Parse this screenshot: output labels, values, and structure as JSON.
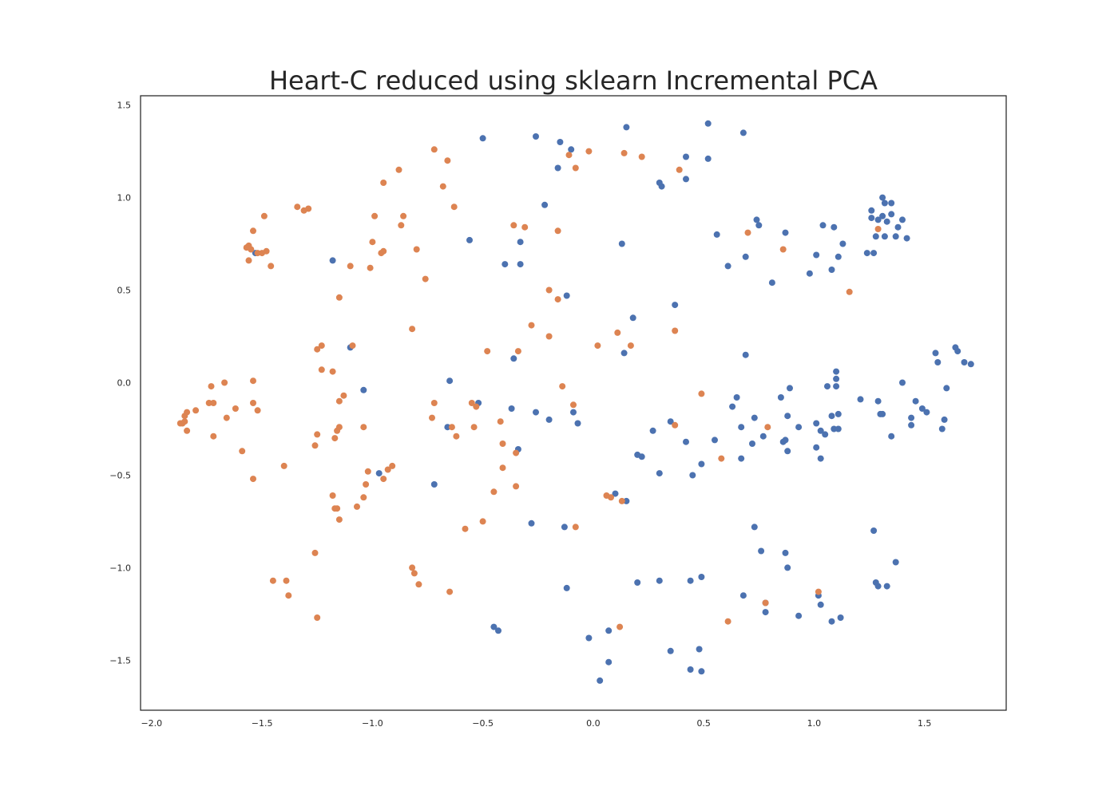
{
  "chart_data": {
    "type": "scatter",
    "title": "Heart-C reduced using sklearn Incremental PCA",
    "xlabel": "",
    "ylabel": "",
    "xlim": [
      -2.05,
      1.87
    ],
    "ylim": [
      -1.77,
      1.55
    ],
    "xticks": [
      -2.0,
      -1.5,
      -1.0,
      -0.5,
      0.0,
      0.5,
      1.0,
      1.5
    ],
    "xtick_labels": [
      "−2.0",
      "−1.5",
      "−1.0",
      "−0.5",
      "0.0",
      "0.5",
      "1.0",
      "1.5"
    ],
    "yticks": [
      1.5,
      1.0,
      0.5,
      0.0,
      -0.5,
      -1.0,
      -1.5
    ],
    "ytick_labels": [
      "1.5",
      "1.0",
      "0.5",
      "0.0",
      "−0.5",
      "−1.0",
      "−1.5"
    ],
    "grid": false,
    "legend": "none",
    "series": [
      {
        "color": "#4c72b0",
        "points": [
          [
            -0.5,
            1.32
          ],
          [
            -0.26,
            1.33
          ],
          [
            -0.15,
            1.3
          ],
          [
            -0.1,
            1.26
          ],
          [
            -0.16,
            1.16
          ],
          [
            0.15,
            1.38
          ],
          [
            0.52,
            1.4
          ],
          [
            0.68,
            1.35
          ],
          [
            0.42,
            1.22
          ],
          [
            0.52,
            1.21
          ],
          [
            0.3,
            1.08
          ],
          [
            0.31,
            1.06
          ],
          [
            0.42,
            1.1
          ],
          [
            -0.22,
            0.96
          ],
          [
            -0.56,
            0.77
          ],
          [
            -0.33,
            0.76
          ],
          [
            -0.4,
            0.64
          ],
          [
            -0.33,
            0.64
          ],
          [
            0.13,
            0.75
          ],
          [
            -1.18,
            0.66
          ],
          [
            -1.53,
            0.7
          ],
          [
            0.56,
            0.8
          ],
          [
            0.74,
            0.88
          ],
          [
            0.75,
            0.85
          ],
          [
            0.87,
            0.81
          ],
          [
            1.04,
            0.85
          ],
          [
            1.09,
            0.84
          ],
          [
            1.13,
            0.75
          ],
          [
            0.61,
            0.63
          ],
          [
            0.69,
            0.68
          ],
          [
            1.01,
            0.69
          ],
          [
            1.11,
            0.68
          ],
          [
            0.98,
            0.59
          ],
          [
            1.08,
            0.61
          ],
          [
            0.81,
            0.54
          ],
          [
            1.24,
            0.7
          ],
          [
            1.27,
            0.7
          ],
          [
            1.26,
            0.93
          ],
          [
            1.31,
            1.0
          ],
          [
            1.32,
            0.97
          ],
          [
            1.35,
            0.97
          ],
          [
            1.26,
            0.89
          ],
          [
            1.29,
            0.88
          ],
          [
            1.31,
            0.9
          ],
          [
            1.33,
            0.87
          ],
          [
            1.35,
            0.91
          ],
          [
            1.38,
            0.84
          ],
          [
            1.4,
            0.88
          ],
          [
            1.28,
            0.79
          ],
          [
            1.32,
            0.79
          ],
          [
            1.37,
            0.79
          ],
          [
            1.42,
            0.78
          ],
          [
            -0.12,
            0.47
          ],
          [
            0.37,
            0.42
          ],
          [
            0.18,
            0.35
          ],
          [
            -1.1,
            0.19
          ],
          [
            -0.36,
            0.13
          ],
          [
            0.14,
            0.16
          ],
          [
            0.69,
            0.15
          ],
          [
            -0.65,
            0.01
          ],
          [
            -1.04,
            -0.04
          ],
          [
            -0.52,
            -0.11
          ],
          [
            -0.37,
            -0.14
          ],
          [
            -0.26,
            -0.16
          ],
          [
            -0.2,
            -0.2
          ],
          [
            -0.09,
            -0.16
          ],
          [
            -0.07,
            -0.22
          ],
          [
            -0.66,
            -0.24
          ],
          [
            -0.34,
            -0.36
          ],
          [
            -0.97,
            -0.49
          ],
          [
            -0.72,
            -0.55
          ],
          [
            0.27,
            -0.26
          ],
          [
            0.35,
            -0.21
          ],
          [
            0.42,
            -0.32
          ],
          [
            0.55,
            -0.31
          ],
          [
            0.2,
            -0.39
          ],
          [
            0.22,
            -0.4
          ],
          [
            0.3,
            -0.49
          ],
          [
            0.49,
            -0.44
          ],
          [
            0.45,
            -0.5
          ],
          [
            0.63,
            -0.13
          ],
          [
            0.65,
            -0.08
          ],
          [
            0.67,
            -0.41
          ],
          [
            0.67,
            -0.24
          ],
          [
            0.72,
            -0.33
          ],
          [
            0.73,
            -0.19
          ],
          [
            0.77,
            -0.29
          ],
          [
            0.85,
            -0.08
          ],
          [
            0.89,
            -0.03
          ],
          [
            0.86,
            -0.32
          ],
          [
            0.87,
            -0.31
          ],
          [
            0.88,
            -0.37
          ],
          [
            0.88,
            -0.18
          ],
          [
            0.93,
            -0.24
          ],
          [
            1.01,
            -0.22
          ],
          [
            1.01,
            -0.35
          ],
          [
            1.03,
            -0.26
          ],
          [
            1.03,
            -0.41
          ],
          [
            1.05,
            -0.28
          ],
          [
            1.06,
            -0.02
          ],
          [
            1.08,
            -0.18
          ],
          [
            1.09,
            -0.25
          ],
          [
            1.1,
            0.06
          ],
          [
            1.1,
            0.02
          ],
          [
            1.1,
            -0.02
          ],
          [
            1.11,
            -0.17
          ],
          [
            1.11,
            -0.25
          ],
          [
            1.21,
            -0.09
          ],
          [
            1.29,
            -0.1
          ],
          [
            1.3,
            -0.17
          ],
          [
            1.31,
            -0.17
          ],
          [
            1.35,
            -0.29
          ],
          [
            1.4,
            0.0
          ],
          [
            1.44,
            -0.19
          ],
          [
            1.44,
            -0.23
          ],
          [
            1.46,
            -0.1
          ],
          [
            1.49,
            -0.14
          ],
          [
            1.51,
            -0.16
          ],
          [
            1.55,
            0.16
          ],
          [
            1.56,
            0.11
          ],
          [
            1.58,
            -0.25
          ],
          [
            1.59,
            -0.2
          ],
          [
            1.6,
            -0.03
          ],
          [
            1.64,
            0.19
          ],
          [
            1.65,
            0.17
          ],
          [
            1.68,
            0.11
          ],
          [
            1.71,
            0.1
          ],
          [
            0.1,
            -0.6
          ],
          [
            0.15,
            -0.64
          ],
          [
            -0.28,
            -0.76
          ],
          [
            -0.13,
            -0.78
          ],
          [
            -0.12,
            -1.11
          ],
          [
            0.2,
            -1.08
          ],
          [
            0.3,
            -1.07
          ],
          [
            0.44,
            -1.07
          ],
          [
            0.49,
            -1.05
          ],
          [
            0.68,
            -1.15
          ],
          [
            0.73,
            -0.78
          ],
          [
            0.76,
            -0.91
          ],
          [
            0.78,
            -1.19
          ],
          [
            0.78,
            -1.24
          ],
          [
            0.87,
            -0.92
          ],
          [
            0.88,
            -1.0
          ],
          [
            0.93,
            -1.26
          ],
          [
            1.02,
            -1.15
          ],
          [
            1.03,
            -1.2
          ],
          [
            1.08,
            -1.29
          ],
          [
            1.12,
            -1.27
          ],
          [
            1.27,
            -0.8
          ],
          [
            1.28,
            -1.08
          ],
          [
            1.29,
            -1.1
          ],
          [
            1.33,
            -1.1
          ],
          [
            1.37,
            -0.97
          ],
          [
            -0.45,
            -1.32
          ],
          [
            -0.43,
            -1.34
          ],
          [
            -0.02,
            -1.38
          ],
          [
            0.03,
            -1.61
          ],
          [
            0.07,
            -1.34
          ],
          [
            0.07,
            -1.51
          ],
          [
            0.35,
            -1.45
          ],
          [
            0.44,
            -1.55
          ],
          [
            0.48,
            -1.44
          ],
          [
            0.49,
            -1.56
          ]
        ]
      },
      {
        "color": "#dd8452",
        "points": [
          [
            -0.72,
            1.26
          ],
          [
            -0.66,
            1.2
          ],
          [
            -0.68,
            1.06
          ],
          [
            -0.88,
            1.15
          ],
          [
            -0.95,
            1.08
          ],
          [
            -0.02,
            1.25
          ],
          [
            -0.11,
            1.23
          ],
          [
            -0.08,
            1.16
          ],
          [
            0.14,
            1.24
          ],
          [
            0.22,
            1.22
          ],
          [
            0.39,
            1.15
          ],
          [
            -1.34,
            0.95
          ],
          [
            -1.31,
            0.93
          ],
          [
            -1.29,
            0.94
          ],
          [
            -1.49,
            0.9
          ],
          [
            -1.54,
            0.82
          ],
          [
            -1.56,
            0.74
          ],
          [
            -1.57,
            0.73
          ],
          [
            -1.55,
            0.72
          ],
          [
            -1.52,
            0.7
          ],
          [
            -1.5,
            0.7
          ],
          [
            -1.48,
            0.71
          ],
          [
            -1.56,
            0.66
          ],
          [
            -1.46,
            0.63
          ],
          [
            -0.99,
            0.9
          ],
          [
            -0.86,
            0.9
          ],
          [
            -0.87,
            0.85
          ],
          [
            -0.8,
            0.72
          ],
          [
            -1.0,
            0.76
          ],
          [
            -0.96,
            0.7
          ],
          [
            -0.95,
            0.71
          ],
          [
            -1.1,
            0.63
          ],
          [
            -1.01,
            0.62
          ],
          [
            -0.76,
            0.56
          ],
          [
            -0.63,
            0.95
          ],
          [
            -0.36,
            0.85
          ],
          [
            -0.31,
            0.84
          ],
          [
            -0.16,
            0.82
          ],
          [
            0.7,
            0.81
          ],
          [
            0.86,
            0.72
          ],
          [
            1.29,
            0.83
          ],
          [
            -1.15,
            0.46
          ],
          [
            -0.2,
            0.5
          ],
          [
            -0.16,
            0.45
          ],
          [
            1.16,
            0.49
          ],
          [
            -0.82,
            0.29
          ],
          [
            -0.28,
            0.31
          ],
          [
            -0.2,
            0.25
          ],
          [
            0.11,
            0.27
          ],
          [
            0.37,
            0.28
          ],
          [
            0.02,
            0.2
          ],
          [
            0.17,
            0.2
          ],
          [
            -1.25,
            0.18
          ],
          [
            -1.23,
            0.2
          ],
          [
            -1.09,
            0.2
          ],
          [
            -0.48,
            0.17
          ],
          [
            -0.34,
            0.17
          ],
          [
            -1.23,
            0.07
          ],
          [
            -1.18,
            0.06
          ],
          [
            -1.67,
            0.0
          ],
          [
            -1.73,
            -0.02
          ],
          [
            -1.54,
            0.01
          ],
          [
            -1.74,
            -0.11
          ],
          [
            -1.72,
            -0.11
          ],
          [
            -1.66,
            -0.19
          ],
          [
            -1.62,
            -0.14
          ],
          [
            -1.54,
            -0.11
          ],
          [
            -1.52,
            -0.15
          ],
          [
            -1.8,
            -0.15
          ],
          [
            -1.84,
            -0.16
          ],
          [
            -1.85,
            -0.18
          ],
          [
            -1.85,
            -0.21
          ],
          [
            -1.86,
            -0.22
          ],
          [
            -1.87,
            -0.22
          ],
          [
            -1.84,
            -0.26
          ],
          [
            -1.72,
            -0.29
          ],
          [
            -1.59,
            -0.37
          ],
          [
            -1.54,
            -0.52
          ],
          [
            -1.4,
            -0.45
          ],
          [
            -1.15,
            -0.1
          ],
          [
            -1.13,
            -0.07
          ],
          [
            -1.16,
            -0.26
          ],
          [
            -1.15,
            -0.24
          ],
          [
            -1.04,
            -0.24
          ],
          [
            -1.25,
            -0.28
          ],
          [
            -1.26,
            -0.34
          ],
          [
            -1.17,
            -0.3
          ],
          [
            -0.72,
            -0.11
          ],
          [
            -0.73,
            -0.19
          ],
          [
            -0.64,
            -0.24
          ],
          [
            -0.62,
            -0.29
          ],
          [
            -0.55,
            -0.11
          ],
          [
            -0.53,
            -0.13
          ],
          [
            -0.54,
            -0.24
          ],
          [
            -0.42,
            -0.21
          ],
          [
            -0.41,
            -0.33
          ],
          [
            -0.41,
            -0.46
          ],
          [
            -0.35,
            -0.38
          ],
          [
            -0.14,
            -0.02
          ],
          [
            -0.09,
            -0.12
          ],
          [
            -1.02,
            -0.48
          ],
          [
            -0.91,
            -0.45
          ],
          [
            -0.93,
            -0.47
          ],
          [
            -0.95,
            -0.52
          ],
          [
            -1.03,
            -0.55
          ],
          [
            -1.04,
            -0.62
          ],
          [
            -1.07,
            -0.67
          ],
          [
            -1.18,
            -0.61
          ],
          [
            -1.17,
            -0.68
          ],
          [
            -1.16,
            -0.68
          ],
          [
            -1.15,
            -0.74
          ],
          [
            -0.45,
            -0.59
          ],
          [
            -0.35,
            -0.56
          ],
          [
            -0.5,
            -0.75
          ],
          [
            -0.58,
            -0.79
          ],
          [
            -0.08,
            -0.78
          ],
          [
            0.06,
            -0.61
          ],
          [
            0.08,
            -0.62
          ],
          [
            0.13,
            -0.64
          ],
          [
            0.37,
            -0.23
          ],
          [
            0.49,
            -0.06
          ],
          [
            0.58,
            -0.41
          ],
          [
            0.79,
            -0.24
          ],
          [
            -1.26,
            -0.92
          ],
          [
            -1.45,
            -1.07
          ],
          [
            -1.39,
            -1.07
          ],
          [
            -1.38,
            -1.15
          ],
          [
            -1.25,
            -1.27
          ],
          [
            -0.82,
            -1.0
          ],
          [
            -0.81,
            -1.03
          ],
          [
            -0.79,
            -1.09
          ],
          [
            -0.65,
            -1.13
          ],
          [
            0.12,
            -1.32
          ],
          [
            0.61,
            -1.29
          ],
          [
            0.78,
            -1.19
          ],
          [
            1.02,
            -1.13
          ]
        ]
      }
    ]
  }
}
